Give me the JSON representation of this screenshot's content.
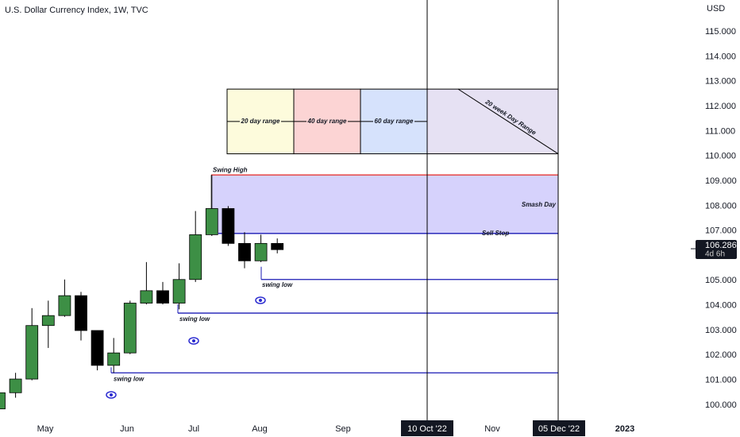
{
  "header": {
    "title": "U.S. Dollar Currency Index, 1W, TVC",
    "currency": "USD"
  },
  "chart_data": {
    "type": "candlestick",
    "up_color": "#3d8f45",
    "down_color": "#000000",
    "open": [
      99.85,
      100.5,
      101.05,
      103.2,
      103.6,
      104.4,
      103.0,
      101.6,
      102.1,
      104.1,
      104.6,
      104.1,
      105.05,
      106.85,
      107.9,
      106.5,
      105.8,
      106.5
    ],
    "high": [
      100.6,
      101.3,
      103.9,
      104.2,
      105.05,
      104.55,
      103.0,
      102.7,
      104.2,
      105.75,
      104.95,
      105.7,
      107.8,
      109.25,
      108.0,
      106.95,
      106.85,
      106.7
    ],
    "low": [
      99.7,
      100.3,
      101.0,
      102.3,
      103.55,
      102.6,
      101.4,
      101.3,
      102.05,
      104.05,
      104.05,
      103.85,
      104.95,
      106.8,
      106.4,
      105.5,
      105.75,
      106.1
    ],
    "close": [
      100.5,
      101.05,
      103.2,
      103.6,
      104.4,
      103.0,
      101.6,
      102.1,
      104.1,
      104.6,
      104.1,
      105.05,
      106.85,
      107.9,
      106.5,
      105.8,
      106.5,
      106.25
    ],
    "ylim": [
      99.36,
      116.28
    ],
    "yticks": [
      {
        "value": 100,
        "label": "100.000"
      },
      {
        "value": 101,
        "label": "101.000"
      },
      {
        "value": 102,
        "label": "102.000"
      },
      {
        "value": 103,
        "label": "103.000"
      },
      {
        "value": 104,
        "label": "104.000"
      },
      {
        "value": 105,
        "label": "105.000"
      },
      {
        "value": 106,
        "label": "106.000"
      },
      {
        "value": 107,
        "label": "107.000"
      },
      {
        "value": 108,
        "label": "108.000"
      },
      {
        "value": 109,
        "label": "109.000"
      },
      {
        "value": 110,
        "label": "110.000"
      },
      {
        "value": 111,
        "label": "111.000"
      },
      {
        "value": 112,
        "label": "112.000"
      },
      {
        "value": 113,
        "label": "113.000"
      },
      {
        "value": 114,
        "label": "114.000"
      },
      {
        "value": 115,
        "label": "115.000"
      }
    ],
    "x_labels": [
      "May",
      "Jun",
      "Jul",
      "Aug",
      "Sep",
      "10 Oct '22",
      "Nov",
      "05 Dec '22",
      "2023"
    ],
    "last_price": 106.286,
    "countdown": "4d 6h",
    "levels": [
      {
        "label": "Swing High",
        "value": 109.25,
        "color": "#e53935"
      },
      {
        "label": "Sell Stop",
        "value": 106.9,
        "color": "#1a1ab5"
      },
      {
        "label": "swing low",
        "value": 105.05,
        "color": "#1a1ab5"
      },
      {
        "label": "swing low",
        "value": 103.7,
        "color": "#1a1ab5"
      },
      {
        "label": "swing low",
        "value": 101.3,
        "color": "#1a1ab5"
      }
    ],
    "smash_day": {
      "label": "Smash Day",
      "ylim": [
        106.9,
        109.25
      ],
      "color": "#d6d2fc"
    },
    "range_ylim": [
      110.1,
      112.7
    ],
    "ranges": [
      {
        "label": "20 day range",
        "color": "#fdfbdc"
      },
      {
        "label": "40 day range",
        "color": "#fcd4d4"
      },
      {
        "label": "60 day range",
        "color": "#d6e2fc"
      },
      {
        "label": "20 week Day Range",
        "color": "#e6e1f3"
      }
    ]
  }
}
